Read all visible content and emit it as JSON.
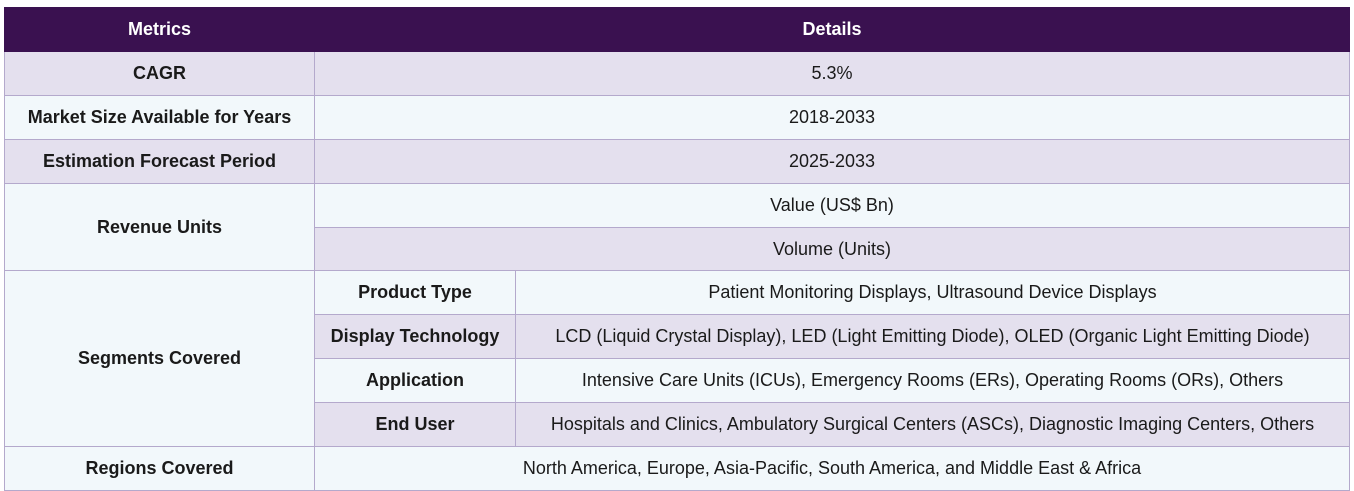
{
  "header": {
    "metrics": "Metrics",
    "details": "Details"
  },
  "rows": {
    "cagr": {
      "label": "CAGR",
      "value": "5.3%"
    },
    "market_size": {
      "label": "Market Size Available for Years",
      "value": "2018-2033"
    },
    "forecast": {
      "label": "Estimation Forecast Period",
      "value": "2025-2033"
    },
    "revenue": {
      "label": "Revenue Units",
      "value1": "Value (US$ Bn)",
      "value2": "Volume (Units)"
    },
    "segments": {
      "label": "Segments Covered",
      "items": [
        {
          "name": "Product Type",
          "value": "Patient Monitoring Displays, Ultrasound Device Displays"
        },
        {
          "name": "Display Technology",
          "value": "LCD (Liquid Crystal Display), LED (Light Emitting Diode), OLED (Organic Light Emitting Diode)"
        },
        {
          "name": "Application",
          "value": "Intensive Care Units (ICUs), Emergency Rooms (ERs), Operating Rooms (ORs), Others"
        },
        {
          "name": "End User",
          "value": "Hospitals and Clinics, Ambulatory Surgical Centers (ASCs), Diagnostic Imaging Centers, Others"
        }
      ]
    },
    "regions": {
      "label": "Regions Covered",
      "value": "North America, Europe, Asia-Pacific, South America, and Middle East & Africa"
    }
  },
  "colors": {
    "header_bg": "#3a1150",
    "shaded_row": "#e4e0ee",
    "light_row": "#f2f8fb",
    "border": "#b4a9cc"
  }
}
